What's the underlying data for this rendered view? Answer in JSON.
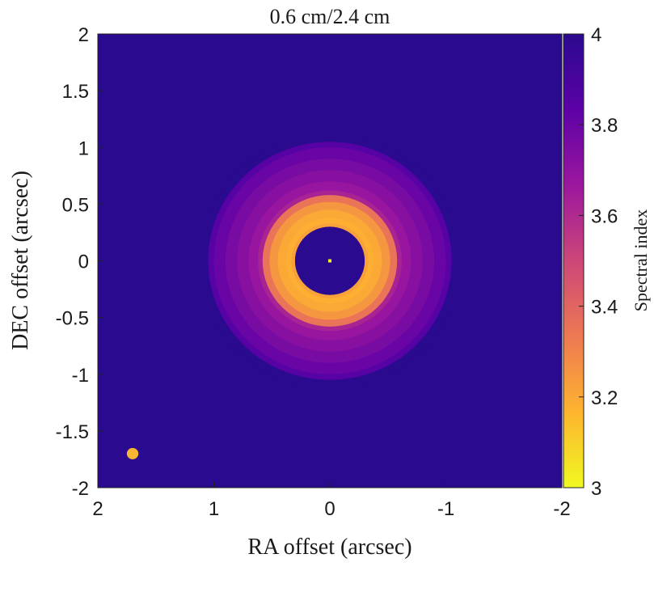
{
  "chart_data": {
    "type": "heatmap",
    "title": "0.6 cm/2.4 cm",
    "xlabel": "RA offset (arcsec)",
    "ylabel": "DEC offset (arcsec)",
    "xlim": [
      2,
      -2
    ],
    "ylim": [
      -2,
      2
    ],
    "x_ticks": [
      "2",
      "1",
      "0",
      "-1",
      "-2"
    ],
    "y_ticks": [
      "-2",
      "-1.5",
      "-1",
      "-0.5",
      "0",
      "0.5",
      "1",
      "1.5",
      "2"
    ],
    "x_tick_values": [
      2,
      1,
      0,
      -1,
      -2
    ],
    "y_tick_values": [
      -2,
      -1.5,
      -1,
      -0.5,
      0,
      0.5,
      1,
      1.5,
      2
    ],
    "colorbar": {
      "label": "Spectral index",
      "range": [
        3,
        4
      ],
      "ticks": [
        "3",
        "3.2",
        "3.4",
        "3.6",
        "3.8",
        "4"
      ],
      "tick_values": [
        3,
        3.2,
        3.4,
        3.6,
        3.8,
        4
      ],
      "colormap": "plasma",
      "colors": [
        "#f0f921",
        "#fdb42f",
        "#ed7953",
        "#cc4778",
        "#9c179e",
        "#5c01a6",
        "#2a0a8e"
      ]
    },
    "background_value": 4.0,
    "radial_profile": {
      "radius_arcsec": [
        0,
        0.3,
        0.33,
        0.38,
        0.45,
        0.52,
        0.58,
        0.62,
        0.7,
        0.8,
        0.9,
        1.0,
        1.05,
        1.12
      ],
      "spectral_index": [
        4.0,
        4.0,
        3.22,
        3.18,
        3.2,
        3.25,
        3.35,
        3.62,
        3.68,
        3.72,
        3.76,
        3.8,
        3.85,
        4.0
      ]
    },
    "central_source": {
      "ra": 0,
      "dec": 0,
      "value": 3.0
    },
    "beam": {
      "ra": 1.7,
      "dec": -1.7,
      "diameter_arcsec": 0.1,
      "color": "#f6b532"
    },
    "grid": false,
    "legend": "none"
  }
}
